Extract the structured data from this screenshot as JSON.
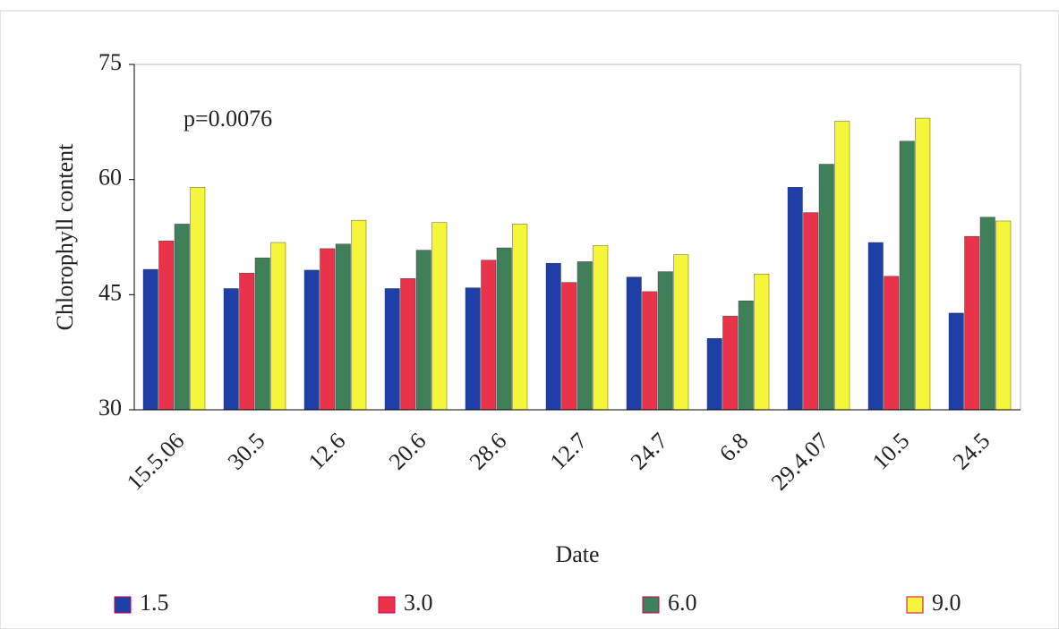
{
  "chart_data": {
    "type": "bar",
    "annotation": "p=0.0076",
    "x_label": "Date",
    "y_label": "Chlorophyll content",
    "categories": [
      "15.5.06",
      "30.5",
      "12.6",
      "20.6",
      "28.6",
      "12.7",
      "24.7",
      "6.8",
      "29.4.07",
      "10.5",
      "24.5"
    ],
    "series": [
      {
        "name": "1.5",
        "color": "#1f3fa8",
        "values": [
          48.3,
          45.8,
          48.2,
          45.8,
          45.9,
          49.1,
          47.3,
          39.3,
          59,
          51.8,
          42.6
        ]
      },
      {
        "name": "3.0",
        "color": "#e8334a",
        "values": [
          52,
          47.8,
          51,
          47.1,
          49.5,
          46.6,
          45.4,
          42.2,
          55.7,
          47.4,
          52.6
        ]
      },
      {
        "name": "6.0",
        "color": "#3f7f5a",
        "values": [
          54.2,
          49.8,
          51.6,
          50.8,
          51.1,
          49.3,
          48,
          44.2,
          62,
          65,
          55.1
        ]
      },
      {
        "name": "9.0",
        "color": "#f5f53a",
        "values": [
          59,
          51.8,
          54.7,
          54.4,
          54.2,
          51.4,
          50.2,
          47.7,
          67.6,
          68,
          54.6
        ]
      }
    ],
    "ylim": [
      30,
      75
    ],
    "yticks": [
      30,
      45,
      60,
      75
    ]
  }
}
